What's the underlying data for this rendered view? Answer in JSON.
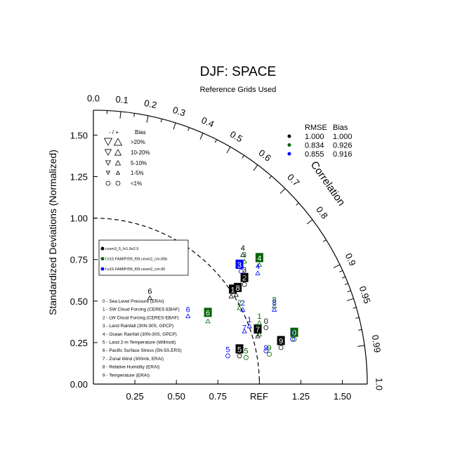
{
  "chart_data": {
    "type": "scatter",
    "diagram": "taylor",
    "title": "DJF: SPACE",
    "subtitle": "Reference Grids Used",
    "ylabel": "Standardized Deviations (Normalized)",
    "arc_label": "Correlation",
    "ref_label": "REF",
    "x_ticks": [
      "0.25",
      "0.50",
      "0.75",
      "1.25",
      "1.50"
    ],
    "y_ticks": [
      "0.00",
      "0.25",
      "0.50",
      "0.75",
      "1.00",
      "1.25",
      "1.50"
    ],
    "corr_ticks": [
      "0.0",
      "0.1",
      "0.2",
      "0.3",
      "0.4",
      "0.5",
      "0.6",
      "0.7",
      "0.8",
      "0.9",
      "0.95",
      "0.99",
      "1.0"
    ],
    "max_sd": 1.65,
    "bias_legend": {
      "header_sign": "- / +",
      "header_bias": "Bias",
      "rows": [
        ">20%",
        "10-20%",
        "5-10%",
        "1-5%",
        "<1%"
      ]
    },
    "stats_legend": {
      "header_rmse": "RMSE",
      "header_bias": "Bias",
      "rows": [
        {
          "color": "#000000",
          "rmse": "1.000",
          "bias": "1.000"
        },
        {
          "color": "#006400",
          "rmse": "0.834",
          "bias": "0.926"
        },
        {
          "color": "#0000ff",
          "rmse": "0.855",
          "bias": "0.916"
        }
      ]
    },
    "cases": [
      {
        "name": "ccsm3_5_fv1.9x2.5",
        "color": "#000000"
      },
      {
        "name": "f.e15.FAMIP.f09_f09.cesm2_cm.00b",
        "color": "#006400"
      },
      {
        "name": "f.e15.FAMIP.f09_f09.cesm2_cm.00",
        "color": "#0000ff"
      }
    ],
    "variables": [
      "0 - Sea Level Pressure (ERAI)",
      "1 - SW Cloud Forcing (CERES-EBAF)",
      "2 - LW Cloud Forcing (CERES-EBAF)",
      "3 - Land Rainfall (30N-30S, GPCP)",
      "4 - Ocean Rainfall (30N-30S, GPCP)",
      "5 - Land 2-m Temperature (Willmott)",
      "6 - Pacific Surface Stress (5N-5S,ERS)",
      "7 - Zonal Wind (300mb, ERAI)",
      "8 - Relative Humidity (ERAI)",
      "9 - Temperature (ERAI)"
    ],
    "points": [
      {
        "case": 0,
        "label": "0",
        "x": 1.04,
        "y": 0.38,
        "marker": "circle",
        "boxed": false,
        "mx": 1.04,
        "my": 0.34
      },
      {
        "case": 0,
        "label": "1",
        "x": 0.84,
        "y": 0.57,
        "marker": "up",
        "boxed": true,
        "mx": 0.83,
        "my": 0.53
      },
      {
        "case": 0,
        "label": "2",
        "x": 0.91,
        "y": 0.64,
        "marker": "circle",
        "boxed": true,
        "mx": 0.91,
        "my": 0.6
      },
      {
        "case": 0,
        "label": "3",
        "x": 0.91,
        "y": 0.69,
        "marker": "down",
        "boxed": false,
        "mx": 0.91,
        "my": 0.65
      },
      {
        "case": 0,
        "label": "4",
        "x": 0.9,
        "y": 0.82,
        "marker": "up",
        "boxed": false,
        "mx": 0.9,
        "my": 0.78
      },
      {
        "case": 0,
        "label": "5",
        "x": 0.88,
        "y": 0.21,
        "marker": "circle",
        "boxed": true,
        "mx": 0.88,
        "my": 0.17
      },
      {
        "case": 0,
        "label": "6",
        "x": 0.34,
        "y": 0.56,
        "marker": "up",
        "boxed": false,
        "mx": 0.34,
        "my": 0.52
      },
      {
        "case": 0,
        "label": "7",
        "x": 0.99,
        "y": 0.33,
        "marker": "up",
        "boxed": true,
        "mx": 0.99,
        "my": 0.29
      },
      {
        "case": 0,
        "label": "8",
        "x": 0.87,
        "y": 0.58,
        "marker": "up",
        "boxed": true,
        "mx": 0.86,
        "my": 0.54
      },
      {
        "case": 0,
        "label": "9",
        "x": 1.13,
        "y": 0.26,
        "marker": "circle",
        "boxed": true,
        "mx": 1.13,
        "my": 0.22
      },
      {
        "case": 1,
        "label": "0",
        "x": 1.21,
        "y": 0.31,
        "marker": "circle",
        "boxed": true,
        "mx": 1.21,
        "my": 0.27
      },
      {
        "case": 1,
        "label": "1",
        "x": 1.0,
        "y": 0.41,
        "marker": "up",
        "boxed": false,
        "mx": 1.0,
        "my": 0.37
      },
      {
        "case": 1,
        "label": "2",
        "x": 0.88,
        "y": 0.49,
        "marker": "up",
        "boxed": false,
        "mx": 0.88,
        "my": 0.46
      },
      {
        "case": 1,
        "label": "3",
        "x": 0.91,
        "y": 0.78,
        "marker": "up",
        "boxed": false,
        "mx": 0.91,
        "my": 0.74
      },
      {
        "case": 1,
        "label": "4",
        "x": 1.0,
        "y": 0.76,
        "marker": "up",
        "boxed": true,
        "mx": 1.0,
        "my": 0.72
      },
      {
        "case": 1,
        "label": "5",
        "x": 0.92,
        "y": 0.2,
        "marker": "circle",
        "boxed": false,
        "mx": 0.92,
        "my": 0.16
      },
      {
        "case": 1,
        "label": "6",
        "x": 0.69,
        "y": 0.43,
        "marker": "up",
        "boxed": true,
        "mx": 0.69,
        "my": 0.38
      },
      {
        "case": 1,
        "label": "7",
        "x": 0.99,
        "y": 0.34,
        "marker": "up",
        "boxed": false,
        "mx": 1.0,
        "my": 0.3
      },
      {
        "case": 1,
        "label": "8",
        "x": 1.09,
        "y": 0.51,
        "marker": "up",
        "boxed": false,
        "mx": 1.09,
        "my": 0.47
      },
      {
        "case": 1,
        "label": "9",
        "x": 1.06,
        "y": 0.22,
        "marker": "circle",
        "boxed": false,
        "mx": 1.06,
        "my": 0.18
      },
      {
        "case": 2,
        "label": "0",
        "x": 1.2,
        "y": 0.31,
        "marker": "circle",
        "boxed": false,
        "mx": 1.2,
        "my": 0.27
      },
      {
        "case": 2,
        "label": "1",
        "x": 0.94,
        "y": 0.39,
        "marker": "up",
        "boxed": false,
        "mx": 0.94,
        "my": 0.35
      },
      {
        "case": 2,
        "label": "2",
        "x": 0.9,
        "y": 0.49,
        "marker": "up",
        "boxed": false,
        "mx": 0.9,
        "my": 0.45
      },
      {
        "case": 2,
        "label": "3",
        "x": 0.88,
        "y": 0.72,
        "marker": "circle",
        "boxed": true,
        "mx": 0.89,
        "my": 0.68
      },
      {
        "case": 2,
        "label": "4",
        "x": 0.99,
        "y": 0.71,
        "marker": "up",
        "boxed": false,
        "mx": 0.99,
        "my": 0.67
      },
      {
        "case": 2,
        "label": "5",
        "x": 0.81,
        "y": 0.21,
        "marker": "circle",
        "boxed": false,
        "mx": 0.81,
        "my": 0.17
      },
      {
        "case": 2,
        "label": "6",
        "x": 0.57,
        "y": 0.45,
        "marker": "up",
        "boxed": false,
        "mx": 0.57,
        "my": 0.41
      },
      {
        "case": 2,
        "label": "7",
        "x": 0.91,
        "y": 0.34,
        "marker": "up",
        "boxed": false,
        "mx": 0.91,
        "my": 0.32
      },
      {
        "case": 2,
        "label": "8",
        "x": 1.09,
        "y": 0.49,
        "marker": "up",
        "boxed": false,
        "mx": 1.09,
        "my": 0.45
      },
      {
        "case": 2,
        "label": "9",
        "x": 1.04,
        "y": 0.22,
        "marker": "circle",
        "boxed": false,
        "mx": 1.04,
        "my": 0.2
      }
    ]
  }
}
